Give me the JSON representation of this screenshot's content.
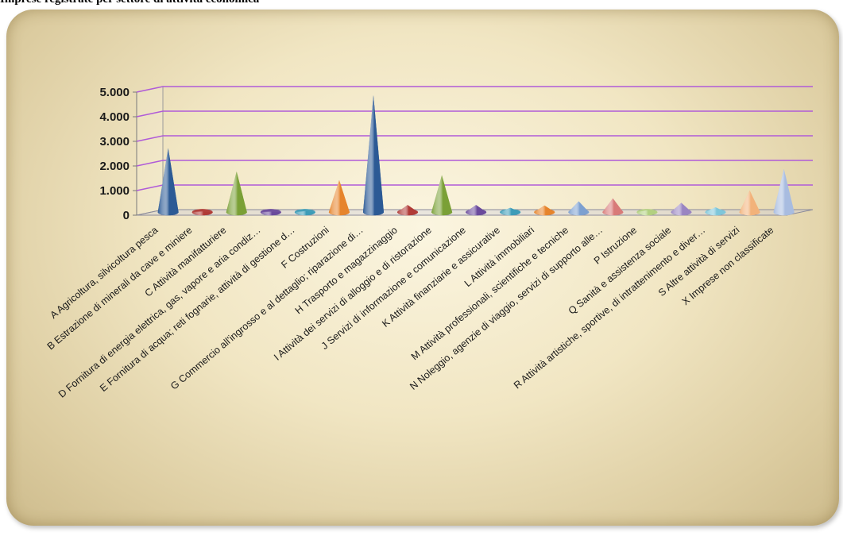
{
  "caption": "Imprese registrate per settore di attività economica",
  "chart_data": {
    "type": "bar",
    "title": "",
    "xlabel": "",
    "ylabel": "",
    "ylim": [
      0,
      5000
    ],
    "y_ticks": [
      "0",
      "1.000",
      "2.000",
      "3.000",
      "4.000",
      "5.000"
    ],
    "grid": true,
    "categories": [
      "A Agricoltura, silvicoltura pesca",
      "B Estrazione di minerali da cave e miniere",
      "C Attività manifatturiere",
      "D Fornitura di energia elettrica, gas, vapore e aria condiz…",
      "E Fornitura di acqua; reti fognarie, attività di gestione d…",
      "F Costruzioni",
      "G Commercio all'ingrosso e al dettaglio; riparazione di…",
      "H Trasporto e magazzinaggio",
      "I Attività dei servizi di alloggio e di ristorazione",
      "J Servizi di informazione e comunicazione",
      "K Attività finanziarie e assicurative",
      "L Attività immobiliari",
      "M Attività professionali, scientifiche e tecniche",
      "N Noleggio, agenzie di viaggio, servizi di supporto alle…",
      "P Istruzione",
      "Q Sanità e assistenza sociale",
      "R Attività artistiche, sportive, di intrattenimento e diver…",
      "S Altre attività di servizi",
      "X Imprese non classificate"
    ],
    "values": [
      2600,
      30,
      1650,
      20,
      40,
      1300,
      4750,
      290,
      1500,
      290,
      180,
      270,
      440,
      560,
      80,
      380,
      200,
      880,
      1750
    ],
    "colors": [
      "#2c5a95",
      "#b03a36",
      "#7aa036",
      "#6a4a9c",
      "#3d9cb8",
      "#e6842c",
      "#2c5a95",
      "#b03a36",
      "#7aa036",
      "#6a4a9c",
      "#3d9cb8",
      "#e6842c",
      "#7da0d0",
      "#d87a78",
      "#b2d080",
      "#9a85c2",
      "#7ec6da",
      "#f2b27a",
      "#a8bce0"
    ]
  }
}
